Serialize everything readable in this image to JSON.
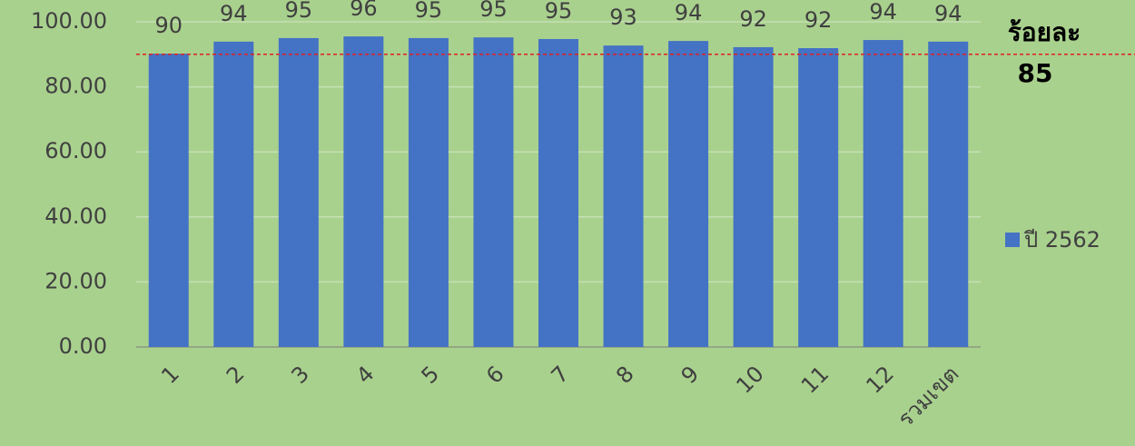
{
  "chart_data": {
    "type": "bar",
    "categories": [
      "1",
      "2",
      "3",
      "4",
      "5",
      "6",
      "7",
      "8",
      "9",
      "10",
      "11",
      "12",
      "รวมเขต"
    ],
    "series": [
      {
        "name": "ปี 2562",
        "color": "#4472c4",
        "values": [
          90.2,
          93.9,
          95,
          95.5,
          95,
          95.2,
          94.7,
          92.7,
          94.1,
          92.2,
          91.9,
          94.4,
          93.9
        ],
        "value_labels": [
          "90",
          "94",
          "95",
          "96",
          "95",
          "95",
          "95",
          "93",
          "94",
          "92",
          "92",
          "94",
          "94"
        ]
      }
    ],
    "ylim": [
      0,
      100
    ],
    "yticks": [
      {
        "value": 0,
        "label": "0.00"
      },
      {
        "value": 20,
        "label": "20.00"
      },
      {
        "value": 40,
        "label": "40.00"
      },
      {
        "value": 60,
        "label": "60.00"
      },
      {
        "value": 80,
        "label": "80.00"
      },
      {
        "value": 100,
        "label": "100.00"
      }
    ],
    "grid": true,
    "reference_line": {
      "value": 90,
      "color": "#e02020"
    },
    "annotation": [
      "ร้อยละ",
      "85"
    ],
    "legend": "right",
    "background": "#a9d18e"
  }
}
